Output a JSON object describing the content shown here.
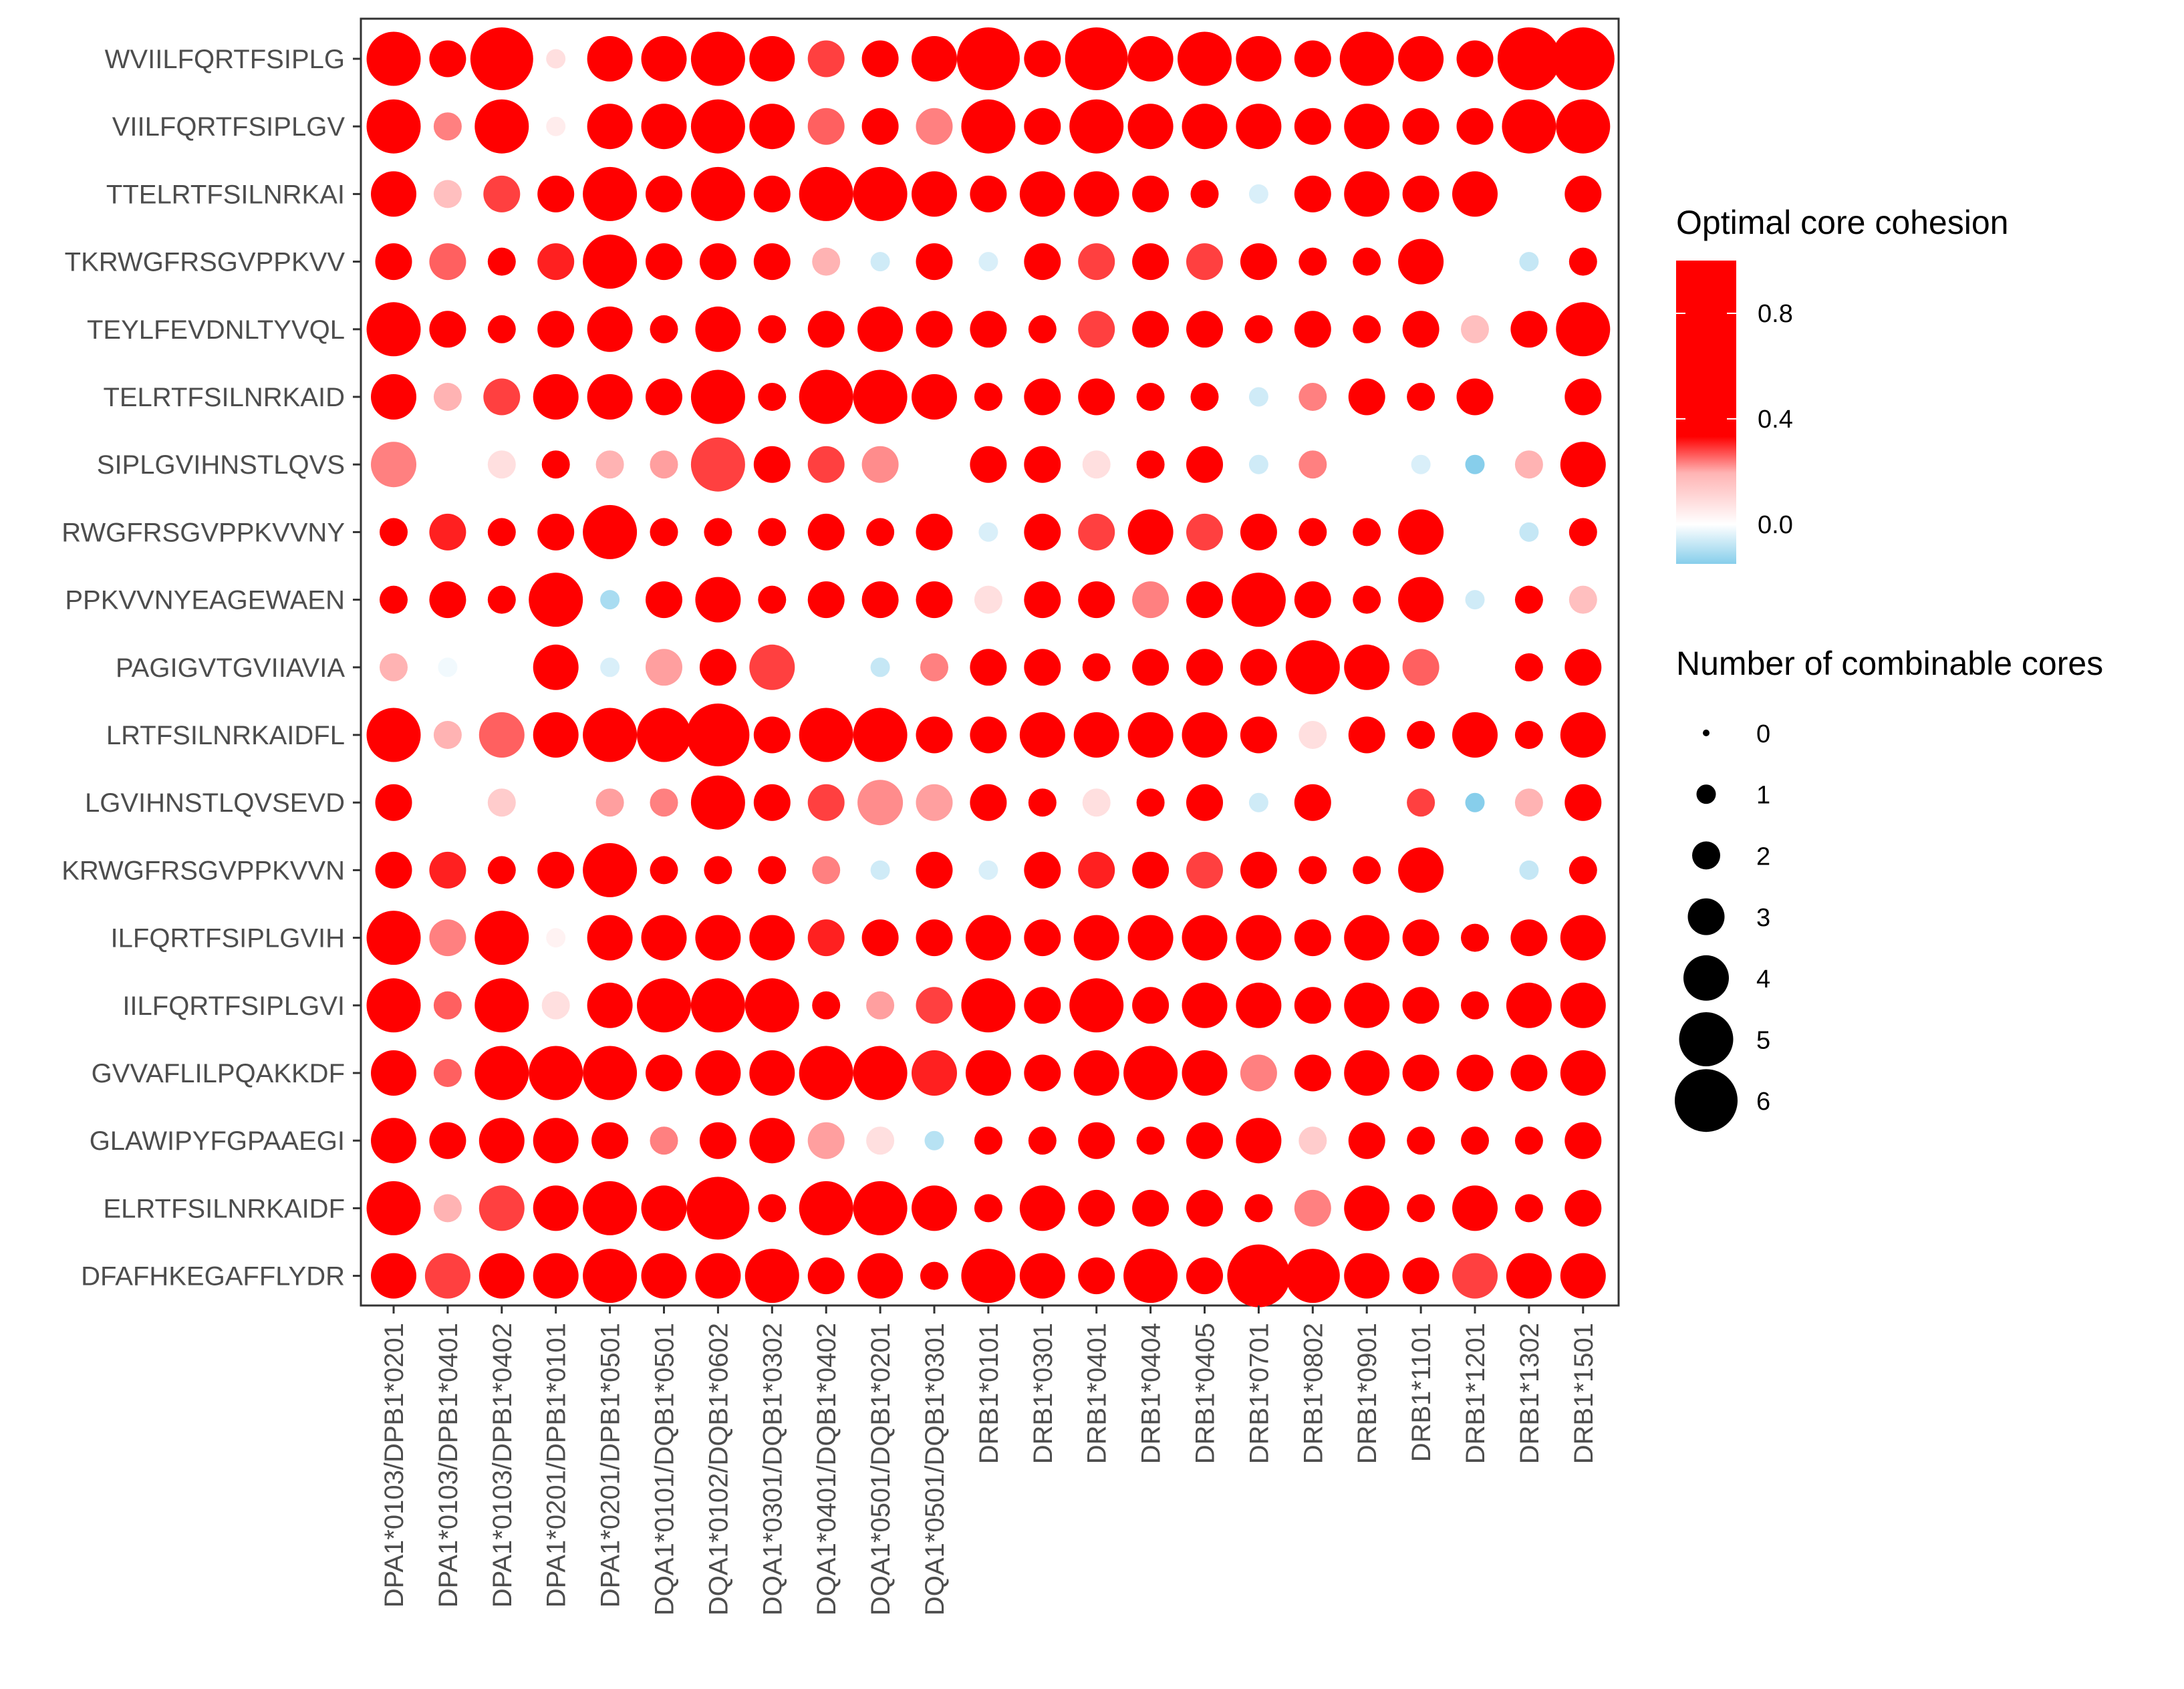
{
  "chart_data": {
    "type": "dot-matrix",
    "title": "",
    "xlabel": "",
    "ylabel": "",
    "alleles": [
      "DPA1*0103/DPB1*0201",
      "DPA1*0103/DPB1*0401",
      "DPA1*0103/DPB1*0402",
      "DPA1*0201/DPB1*0101",
      "DPA1*0201/DPB1*0501",
      "DQA1*0101/DQB1*0501",
      "DQA1*0102/DQB1*0602",
      "DQA1*0301/DQB1*0302",
      "DQA1*0401/DQB1*0402",
      "DQA1*0501/DQB1*0201",
      "DQA1*0501/DQB1*0301",
      "DRB1*0101",
      "DRB1*0301",
      "DRB1*0401",
      "DRB1*0404",
      "DRB1*0405",
      "DRB1*0701",
      "DRB1*0802",
      "DRB1*0901",
      "DRB1*1101",
      "DRB1*1201",
      "DRB1*1302",
      "DRB1*1501"
    ],
    "peptides": [
      "WVIILFQRTFSIPLG",
      "VIILFQRTFSIPLGV",
      "TTELRTFSILNRKAI",
      "TKRWGFRSGVPPKVV",
      "TEYLFEVDNLTYVQL",
      "TELRTFSILNRKAID",
      "SIPLGVIHNSTLQVS",
      "RWGFRSGVPPKVVNY",
      "PPKVVNYEAGEWAEN",
      "PAGIGVTGVIIAVIA",
      "LRTFSILNRKAIDFL",
      "LGVIHNSTLQVSEVD",
      "KRWGFRSGVPPKVVN",
      "ILFQRTFSIPLGVIH",
      "IILFQRTFSIPLGVI",
      "GVVAFLILPQAKKDF",
      "GLAWIPYFGPAAEGI",
      "ELRTFSILNRKAIDF",
      "DFAFHKEGAFFLYDR"
    ],
    "color_legend": {
      "title": "Optimal core cohesion",
      "ticks": [
        "0.8",
        "0.4",
        "0.0"
      ],
      "tick_values": [
        0.8,
        0.4,
        0.0
      ],
      "range": [
        -0.15,
        1.0
      ]
    },
    "size_legend": {
      "title": "Number of combinable cores",
      "values": [
        "0",
        "1",
        "2",
        "3",
        "4",
        "5",
        "6"
      ]
    },
    "sizes": [
      [
        5,
        3,
        6,
        1,
        4,
        4,
        5,
        4,
        3,
        3,
        4,
        6,
        3,
        6,
        4,
        5,
        4,
        3,
        5,
        4,
        3,
        6,
        6
      ],
      [
        5,
        2,
        5,
        1,
        4,
        4,
        5,
        4,
        3,
        3,
        3,
        5,
        3,
        5,
        4,
        4,
        4,
        3,
        4,
        3,
        3,
        5,
        5
      ],
      [
        4,
        2,
        3,
        3,
        5,
        3,
        5,
        3,
        5,
        5,
        4,
        3,
        4,
        4,
        3,
        2,
        1,
        3,
        4,
        3,
        4,
        0,
        3
      ],
      [
        3,
        3,
        2,
        3,
        5,
        3,
        3,
        3,
        2,
        1,
        3,
        1,
        3,
        3,
        3,
        3,
        3,
        2,
        2,
        4,
        1,
        1,
        2
      ],
      [
        5,
        3,
        2,
        3,
        4,
        2,
        4,
        2,
        3,
        4,
        3,
        3,
        2,
        3,
        3,
        3,
        2,
        3,
        2,
        3,
        2,
        3,
        5
      ],
      [
        4,
        2,
        3,
        4,
        4,
        3,
        5,
        2,
        5,
        5,
        4,
        2,
        3,
        3,
        2,
        2,
        1,
        2,
        3,
        2,
        3,
        0,
        3
      ],
      [
        4,
        0,
        2,
        2,
        2,
        2,
        5,
        3,
        3,
        3,
        0,
        3,
        3,
        2,
        2,
        3,
        1,
        2,
        0,
        1,
        1,
        2,
        4
      ],
      [
        2,
        3,
        2,
        3,
        5,
        2,
        2,
        2,
        3,
        2,
        3,
        1,
        3,
        3,
        4,
        3,
        3,
        2,
        2,
        4,
        0,
        1,
        2
      ],
      [
        2,
        3,
        2,
        5,
        1,
        3,
        4,
        2,
        3,
        3,
        3,
        2,
        3,
        3,
        3,
        3,
        5,
        3,
        2,
        4,
        1,
        2,
        2
      ],
      [
        2,
        1,
        0,
        4,
        1,
        3,
        3,
        4,
        1,
        1,
        2,
        3,
        3,
        2,
        3,
        3,
        3,
        5,
        4,
        3,
        0,
        2,
        3
      ],
      [
        5,
        2,
        4,
        4,
        5,
        5,
        6,
        3,
        5,
        5,
        3,
        3,
        4,
        4,
        4,
        4,
        3,
        2,
        3,
        2,
        4,
        2,
        4
      ],
      [
        3,
        0,
        2,
        0,
        2,
        2,
        5,
        3,
        3,
        4,
        3,
        3,
        2,
        2,
        2,
        3,
        1,
        3,
        0,
        2,
        1,
        2,
        3
      ],
      [
        3,
        3,
        2,
        3,
        5,
        2,
        2,
        2,
        2,
        1,
        3,
        1,
        3,
        3,
        3,
        3,
        3,
        2,
        2,
        4,
        0,
        1,
        2
      ],
      [
        5,
        3,
        5,
        1,
        4,
        4,
        4,
        4,
        3,
        3,
        3,
        4,
        3,
        4,
        4,
        4,
        4,
        3,
        4,
        3,
        2,
        3,
        4
      ],
      [
        5,
        2,
        5,
        2,
        4,
        5,
        5,
        5,
        2,
        2,
        3,
        5,
        3,
        5,
        3,
        4,
        4,
        3,
        4,
        3,
        2,
        4,
        4
      ],
      [
        4,
        2,
        5,
        5,
        5,
        3,
        4,
        4,
        5,
        5,
        4,
        4,
        3,
        4,
        5,
        4,
        3,
        3,
        4,
        3,
        3,
        3,
        4
      ],
      [
        4,
        3,
        4,
        4,
        3,
        2,
        3,
        4,
        3,
        2,
        1,
        2,
        2,
        3,
        2,
        3,
        4,
        2,
        3,
        2,
        2,
        2,
        3
      ],
      [
        5,
        2,
        4,
        4,
        5,
        4,
        6,
        2,
        5,
        5,
        4,
        2,
        4,
        3,
        3,
        3,
        2,
        3,
        4,
        2,
        4,
        2,
        3
      ],
      [
        4,
        4,
        4,
        4,
        5,
        4,
        4,
        5,
        3,
        4,
        2,
        5,
        4,
        3,
        5,
        3,
        6,
        5,
        4,
        3,
        4,
        4,
        4
      ]
    ],
    "cohesion": [
      [
        0.62,
        0.72,
        1.0,
        0.05,
        1.0,
        1.0,
        1.0,
        1.0,
        0.3,
        1.0,
        1.0,
        1.0,
        1.0,
        1.0,
        1.0,
        1.0,
        1.0,
        1.0,
        1.0,
        1.0,
        1.0,
        1.0,
        1.0
      ],
      [
        0.62,
        0.2,
        1.0,
        0.03,
        1.0,
        1.0,
        1.0,
        1.0,
        0.25,
        1.0,
        0.2,
        1.0,
        1.0,
        1.0,
        1.0,
        1.0,
        1.0,
        1.0,
        1.0,
        1.0,
        1.0,
        1.0,
        1.0
      ],
      [
        1.0,
        0.1,
        0.3,
        0.7,
        1.0,
        1.0,
        1.0,
        1.0,
        1.0,
        1.0,
        1.0,
        1.0,
        1.0,
        1.0,
        0.55,
        1.0,
        -0.08,
        1.0,
        1.0,
        1.0,
        1.0,
        0.0,
        1.0
      ],
      [
        0.6,
        0.25,
        1.0,
        0.35,
        1.0,
        0.7,
        1.0,
        1.0,
        0.12,
        -0.1,
        1.0,
        -0.08,
        0.62,
        0.3,
        1.0,
        0.3,
        1.0,
        1.0,
        1.0,
        0.6,
        0.0,
        -0.12,
        1.0
      ],
      [
        1.0,
        0.5,
        0.55,
        0.65,
        1.0,
        1.0,
        1.0,
        1.0,
        1.0,
        1.0,
        1.0,
        1.0,
        1.0,
        0.3,
        1.0,
        0.7,
        1.0,
        1.0,
        1.0,
        0.5,
        0.1,
        1.0,
        1.0
      ],
      [
        1.0,
        0.12,
        0.3,
        0.9,
        1.0,
        1.0,
        1.0,
        1.0,
        1.0,
        1.0,
        1.0,
        1.0,
        1.0,
        1.0,
        0.55,
        1.0,
        -0.1,
        0.2,
        1.0,
        0.4,
        1.0,
        0.0,
        1.0
      ],
      [
        0.2,
        0.0,
        0.05,
        1.0,
        0.12,
        0.15,
        0.3,
        0.5,
        0.3,
        0.18,
        0.0,
        0.6,
        1.0,
        0.05,
        1.0,
        0.65,
        -0.1,
        0.2,
        0.0,
        -0.08,
        -0.25,
        0.12,
        1.0
      ],
      [
        0.7,
        0.35,
        1.0,
        0.4,
        1.0,
        0.7,
        1.0,
        1.0,
        1.0,
        1.0,
        1.0,
        -0.08,
        0.65,
        0.3,
        1.0,
        0.3,
        1.0,
        1.0,
        1.0,
        0.6,
        0.0,
        -0.12,
        1.0
      ],
      [
        1.0,
        0.45,
        0.45,
        1.0,
        -0.18,
        0.7,
        1.0,
        1.0,
        1.0,
        1.0,
        0.55,
        0.05,
        1.0,
        0.5,
        0.2,
        1.0,
        1.0,
        1.0,
        1.0,
        0.6,
        -0.1,
        0.5,
        0.1
      ],
      [
        0.12,
        -0.03,
        0.0,
        0.9,
        -0.08,
        0.15,
        0.65,
        0.3,
        0.0,
        -0.12,
        0.2,
        0.5,
        0.5,
        0.4,
        1.0,
        0.55,
        1.0,
        1.0,
        1.0,
        0.25,
        0.0,
        0.45,
        0.45
      ],
      [
        1.0,
        0.12,
        0.25,
        1.0,
        1.0,
        1.0,
        1.0,
        1.0,
        1.0,
        1.0,
        1.0,
        1.0,
        1.0,
        1.0,
        1.0,
        1.0,
        1.0,
        0.05,
        1.0,
        0.4,
        1.0,
        1.0,
        1.0
      ],
      [
        0.45,
        0.0,
        0.08,
        0.0,
        0.15,
        0.2,
        0.45,
        0.55,
        0.3,
        0.18,
        0.15,
        0.6,
        1.0,
        0.05,
        1.0,
        0.65,
        -0.1,
        0.45,
        0.0,
        0.3,
        -0.25,
        0.12,
        1.0
      ],
      [
        0.7,
        0.35,
        1.0,
        0.4,
        1.0,
        0.7,
        1.0,
        1.0,
        0.2,
        -0.1,
        1.0,
        -0.08,
        0.62,
        0.35,
        1.0,
        0.3,
        1.0,
        1.0,
        1.0,
        0.55,
        0.0,
        -0.12,
        1.0
      ],
      [
        0.62,
        0.2,
        1.0,
        0.02,
        1.0,
        1.0,
        1.0,
        1.0,
        0.35,
        0.6,
        1.0,
        1.0,
        1.0,
        0.9,
        1.0,
        1.0,
        1.0,
        1.0,
        1.0,
        1.0,
        1.0,
        1.0,
        1.0
      ],
      [
        0.62,
        0.25,
        1.0,
        0.05,
        1.0,
        1.0,
        1.0,
        1.0,
        0.4,
        0.15,
        0.3,
        1.0,
        1.0,
        1.0,
        1.0,
        1.0,
        1.0,
        1.0,
        1.0,
        1.0,
        1.0,
        1.0,
        1.0
      ],
      [
        1.0,
        0.25,
        0.75,
        1.0,
        1.0,
        1.0,
        1.0,
        1.0,
        1.0,
        1.0,
        0.35,
        1.0,
        1.0,
        1.0,
        1.0,
        1.0,
        0.2,
        1.0,
        1.0,
        1.0,
        1.0,
        1.0,
        1.0
      ],
      [
        1.0,
        0.55,
        0.62,
        0.8,
        1.0,
        0.2,
        1.0,
        1.0,
        0.15,
        0.05,
        -0.15,
        1.0,
        0.8,
        1.0,
        0.7,
        1.0,
        1.0,
        0.08,
        1.0,
        1.0,
        0.8,
        1.0,
        1.0
      ],
      [
        1.0,
        0.12,
        0.3,
        1.0,
        1.0,
        1.0,
        1.0,
        1.0,
        1.0,
        1.0,
        1.0,
        1.0,
        1.0,
        1.0,
        1.0,
        1.0,
        1.0,
        0.2,
        1.0,
        0.4,
        1.0,
        1.0,
        1.0
      ],
      [
        0.85,
        0.3,
        1.0,
        0.8,
        1.0,
        1.0,
        1.0,
        1.0,
        1.0,
        1.0,
        0.8,
        1.0,
        1.0,
        1.0,
        1.0,
        1.0,
        1.0,
        1.0,
        1.0,
        1.0,
        0.3,
        1.0,
        1.0
      ]
    ]
  }
}
